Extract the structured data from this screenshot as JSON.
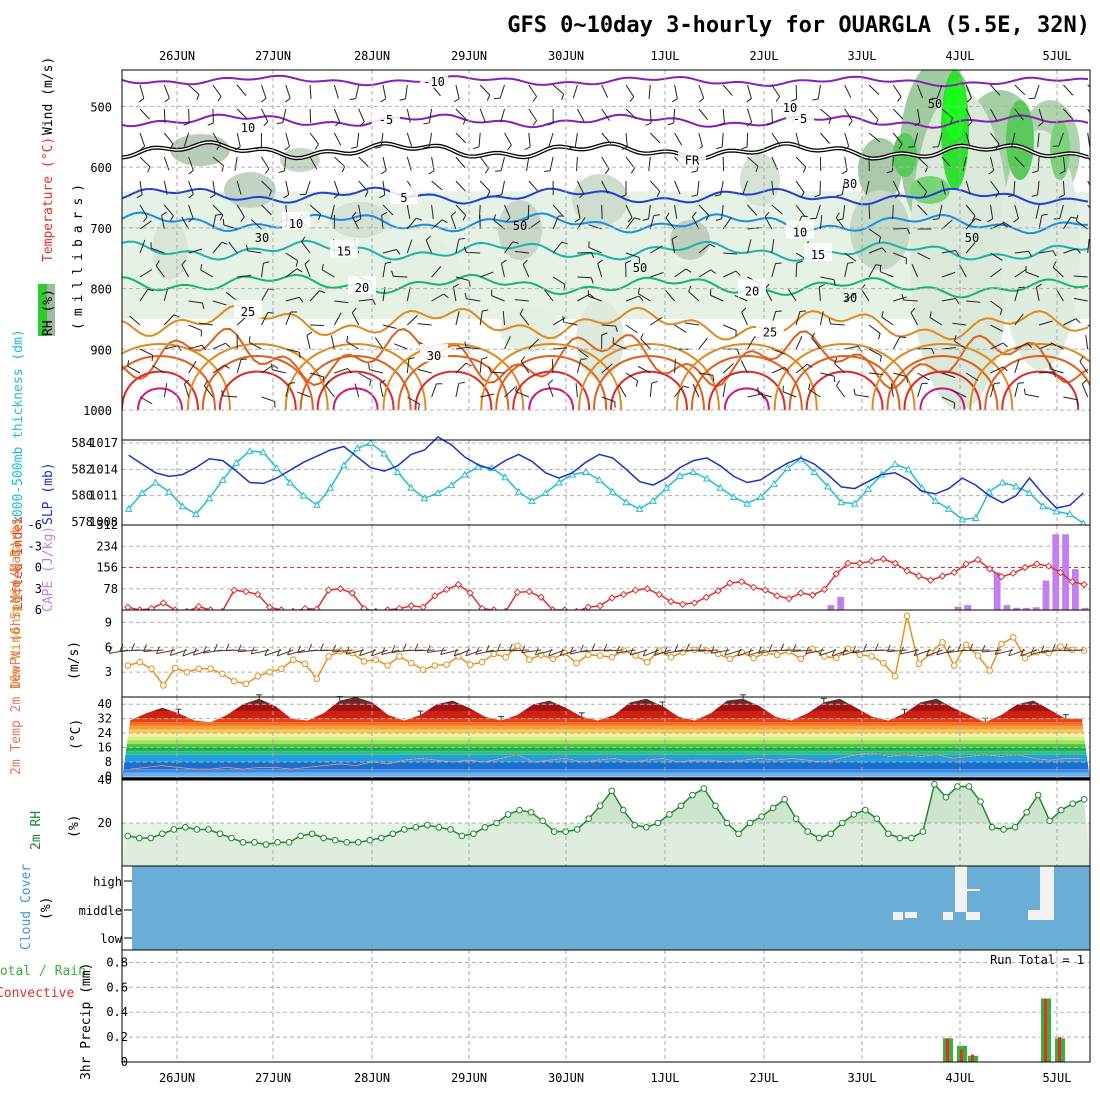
{
  "title": "GFS 0~10day 3-hourly for OUARGLA (5.5E, 32N)",
  "dates": [
    "26JUN",
    "27JUN",
    "28JUN",
    "29JUN",
    "30JUN",
    "1JUL",
    "2JUL",
    "3JUL",
    "4JUL",
    "5JUL"
  ],
  "colors": {
    "purple": "#8a1fb4",
    "blue": "#1f3fd6",
    "lightblue": "#1c8ee0",
    "teal": "#1bb3a9",
    "green": "#13b66e",
    "orange": "#e08a1e",
    "darkorange": "#e0601e",
    "red": "#e02828",
    "magenta": "#d01480",
    "cyan": "#1fbfcf",
    "slp": "#1a33c8",
    "li": "#e03030",
    "cape": "#c080f0",
    "windspeed": "#e89020",
    "rh2m": "#1e8a2a",
    "cloud": "#6aaed6",
    "precip_total": "#3ab03a",
    "precip_conv": "#e03030"
  },
  "panels": {
    "upper": {
      "ylabel_wind": "Wind (m/s)",
      "ylabel_temp": "Temperature (°C)",
      "ylabel_rh": "RH (%)",
      "ylabel_mb": "(millibars)",
      "yticks": [
        "500",
        "600",
        "700",
        "800",
        "900",
        "1000"
      ],
      "contours": [
        {
          "label": "-10",
          "level": 480
        },
        {
          "label": "-5",
          "level": 525
        },
        {
          "label": "FR",
          "level": 590
        },
        {
          "label": "-5",
          "level": 530
        },
        {
          "label": "5",
          "level": 640
        },
        {
          "label": "10",
          "level": 710
        },
        {
          "label": "15",
          "level": 745
        },
        {
          "label": "20",
          "level": 790
        },
        {
          "label": "25",
          "level": 850
        },
        {
          "label": "30",
          "level": 905
        }
      ],
      "contour_labels": [
        {
          "text": "-10",
          "series": 0,
          "at": 0.32
        },
        {
          "text": "-5",
          "series": 1,
          "at": 0.27
        },
        {
          "text": "-5",
          "series": 1,
          "at": 0.7
        },
        {
          "text": "FR",
          "series": 2,
          "at": 0.59
        },
        {
          "text": "5",
          "series": 3,
          "at": 0.29
        },
        {
          "text": "10",
          "series": 4,
          "at": 0.18
        },
        {
          "text": "10",
          "series": 4,
          "at": 0.7
        },
        {
          "text": "15",
          "series": 5,
          "at": 0.23
        },
        {
          "text": "15",
          "series": 5,
          "at": 0.72
        },
        {
          "text": "20",
          "series": 6,
          "at": 0.25
        },
        {
          "text": "20",
          "series": 6,
          "at": 0.65
        },
        {
          "text": "25",
          "series": 7,
          "at": 0.13
        },
        {
          "text": "25",
          "series": 7,
          "at": 0.67
        },
        {
          "text": "30",
          "series": 8,
          "at": 0.32
        }
      ],
      "rh_labels": [
        "10",
        "50",
        "30",
        "30",
        "50",
        "10",
        "50",
        "30",
        "50"
      ]
    },
    "thickness": {
      "ylabel_left": "1000-500mb thickness (dm)",
      "ylabel_right": "SLP (mb)",
      "left_ticks": [
        "584",
        "582",
        "580",
        "578"
      ],
      "right_ticks": [
        "1017",
        "1014",
        "1011",
        "1008"
      ]
    },
    "instability": {
      "ylabel_left": "Lifted Index",
      "ylabel_right": "CAPE (J/kg)",
      "left_ticks": [
        "-6",
        "-3",
        "0",
        "3",
        "6"
      ],
      "right_ticks": [
        "312",
        "234",
        "156",
        "78"
      ]
    },
    "wind10": {
      "ylabel": "10m Wind Speed & Barbs",
      "unit": "(m/s)",
      "yticks": [
        "9",
        "6",
        "3"
      ]
    },
    "temp2m": {
      "ylabel": "2m Temp 2m DewPt (6hr Min/Max)",
      "unit": "(°C)",
      "yticks": [
        "40",
        "32",
        "24",
        "16",
        "8",
        "0"
      ]
    },
    "rh2m": {
      "ylabel": "2m RH",
      "unit": "(%)",
      "yticks": [
        "40",
        "20"
      ]
    },
    "cloud": {
      "ylabel": "Cloud Cover",
      "unit": "(%)",
      "levels": [
        "high",
        "middle",
        "low"
      ]
    },
    "precip": {
      "ylabel_a": "Total / Rain",
      "ylabel_b": "Convective",
      "ylabel_c": "3hr Precip (mm)",
      "yticks": [
        "0.8",
        "0.6",
        "0.4",
        "0.2",
        "0"
      ],
      "run_total": "Run Total = 1"
    }
  },
  "chart_data": [
    {
      "type": "line",
      "panel": "thickness",
      "series": [
        {
          "name": "1000-500mb thickness (dm)",
          "values": [
            579.0,
            580.2,
            581.0,
            580.3,
            579.2,
            578.6,
            579.8,
            581.2,
            582.5,
            583.4,
            583.3,
            582.1,
            581.0,
            580.0,
            579.3,
            580.6,
            582.3,
            583.6,
            584.0,
            583.2,
            581.8,
            580.6,
            579.8,
            580.2,
            580.8,
            581.6,
            582.2,
            582.1,
            581.4,
            580.3,
            579.6,
            580.2,
            581.0,
            581.6,
            581.8,
            581.2,
            580.3,
            579.5,
            579.0,
            579.6,
            580.6,
            581.5,
            581.8,
            581.3,
            580.6,
            579.9,
            579.4,
            579.9,
            580.9,
            582.1,
            582.8,
            581.8,
            580.7,
            579.5,
            579.4,
            580.5,
            581.6,
            582.4,
            582.0,
            580.6,
            579.6,
            579.0,
            578.2,
            578.3,
            580.3,
            581.0,
            580.7,
            580.2,
            579.2,
            578.8,
            578.6,
            577.9
          ]
        },
        {
          "name": "SLP (mb)",
          "values": [
            1015.6,
            1014.6,
            1013.6,
            1013.2,
            1013.4,
            1014.2,
            1015.2,
            1015.0,
            1013.8,
            1012.5,
            1012.4,
            1013.0,
            1013.9,
            1014.8,
            1015.5,
            1016.2,
            1016.6,
            1015.4,
            1014.2,
            1013.8,
            1014.4,
            1015.7,
            1016.2,
            1017.7,
            1016.8,
            1015.4,
            1014.5,
            1014.0,
            1015.0,
            1015.7,
            1014.9,
            1013.6,
            1013.0,
            1013.6,
            1014.8,
            1015.7,
            1015.3,
            1014.0,
            1012.6,
            1012.2,
            1013.0,
            1014.2,
            1015.0,
            1015.3,
            1014.4,
            1013.2,
            1012.5,
            1012.8,
            1013.8,
            1014.7,
            1015.3,
            1014.6,
            1013.4,
            1012.0,
            1011.8,
            1012.6,
            1013.4,
            1013.6,
            1012.8,
            1011.5,
            1011.2,
            1011.8,
            1013.0,
            1012.2,
            1011.0,
            1010.2,
            1011.0,
            1013.0,
            1011.2,
            1009.6,
            1009.9,
            1011.3
          ]
        }
      ],
      "ylim_left": [
        578,
        584
      ],
      "ylim_right": [
        1008,
        1017
      ]
    },
    {
      "type": "line",
      "panel": "instability",
      "series": [
        {
          "name": "Lifted Index",
          "values": [
            5.6,
            6.0,
            5.8,
            5.0,
            6.0,
            6.2,
            5.5,
            6.0,
            6.2,
            3.2,
            3.4,
            3.8,
            5.6,
            6.0,
            6.2,
            5.8,
            5.9,
            3.2,
            3.0,
            3.6,
            5.8,
            6.2,
            6.0,
            5.8,
            5.4,
            5.6,
            4.0,
            3.1,
            2.4,
            3.6,
            5.8,
            6.0,
            6.2,
            3.5,
            3.4,
            4.2,
            6.0,
            6.0,
            6.2,
            5.6,
            5.4,
            4.3,
            3.8,
            3.2,
            3.0,
            3.8,
            4.8,
            5.2,
            5.0,
            4.2,
            3.3,
            2.2,
            2.0,
            2.8,
            3.2,
            4.0,
            4.4,
            3.6,
            3.9,
            3.1,
            0.9,
            -0.6,
            -0.6,
            -0.9,
            -1.2,
            -0.6,
            0.5,
            1.2,
            1.8,
            1.2,
            0.7,
            -0.5,
            -1.1,
            0.2,
            1.3,
            0.8,
            0.0,
            -0.5,
            -0.2,
            0.7,
            2.0,
            2.4
          ]
        },
        {
          "name": "CAPE (J/kg)",
          "values": [
            0,
            0,
            0,
            0,
            0,
            0,
            0,
            0,
            0,
            0,
            0,
            0,
            0,
            0,
            0,
            0,
            0,
            0,
            0,
            0,
            0,
            0,
            0,
            0,
            0,
            0,
            0,
            0,
            0,
            0,
            0,
            0,
            0,
            0,
            0,
            0,
            0,
            0,
            0,
            0,
            0,
            0,
            0,
            0,
            0,
            0,
            0,
            0,
            0,
            0,
            0,
            0,
            0,
            0,
            0,
            0,
            0,
            0,
            0,
            0,
            0,
            0,
            0,
            0,
            0,
            0,
            0,
            0,
            0,
            0,
            0,
            0,
            18,
            48,
            0,
            0,
            0,
            0,
            0,
            0,
            0,
            0,
            0,
            0,
            0,
            12,
            18,
            0,
            0,
            138,
            18,
            8,
            8,
            10,
            108,
            278,
            278,
            150,
            8
          ]
        }
      ],
      "ylim_left": [
        6,
        -6
      ],
      "ylim_right": [
        0,
        312
      ]
    },
    {
      "type": "line",
      "panel": "wind10",
      "series": [
        {
          "name": "10m Wind Speed (m/s)",
          "values": [
            3.8,
            4.2,
            3.4,
            1.4,
            3.5,
            3.0,
            3.4,
            3.4,
            2.8,
            1.9,
            1.6,
            2.5,
            3.0,
            3.4,
            4.5,
            4.0,
            2.2,
            4.9,
            5.5,
            5.3,
            4.3,
            4.5,
            3.8,
            4.9,
            4.1,
            3.3,
            3.8,
            3.9,
            4.9,
            3.9,
            4.2,
            5.2,
            4.8,
            6.2,
            4.5,
            5.1,
            4.6,
            5.3,
            4.1,
            5.1,
            5.0,
            4.8,
            5.6,
            5.0,
            4.2,
            5.6,
            4.8,
            5.4,
            5.7,
            5.6,
            5.2,
            4.6,
            5.4,
            4.7,
            5.3,
            5.1,
            5.5,
            4.6,
            5.8,
            4.9,
            4.7,
            5.8,
            5.1,
            4.9,
            4.1,
            2.5,
            9.8,
            4.0,
            5.3,
            6.6,
            3.8,
            6.3,
            5.0,
            3.2,
            6.4,
            7.2,
            4.7,
            5.4,
            5.3,
            6.1,
            5.7,
            5.6
          ]
        }
      ],
      "ylim": [
        0,
        10.5
      ]
    },
    {
      "type": "area",
      "panel": "temp2m",
      "series": [
        {
          "name": "2m Temp (°C)",
          "values": [
            31,
            35,
            38,
            35,
            31,
            30,
            34,
            40,
            43,
            39,
            32,
            31,
            35,
            42,
            44,
            41,
            34,
            31,
            34,
            40,
            42,
            38,
            33,
            31,
            34,
            40,
            42,
            38,
            33,
            31,
            34,
            41,
            43,
            39,
            33,
            31,
            35,
            42,
            43,
            39,
            33,
            31,
            35,
            41,
            43,
            38,
            33,
            31,
            35,
            41,
            43,
            38,
            34,
            30,
            34,
            40,
            42,
            37,
            32,
            32
          ]
        },
        {
          "name": "2m DewPt (°C)",
          "values": [
            4,
            5,
            6,
            5,
            4,
            4,
            5,
            4,
            5,
            5,
            4,
            5,
            6,
            7,
            6,
            8,
            7,
            9,
            10,
            9,
            8,
            9,
            8,
            10,
            12,
            8,
            9,
            10,
            8,
            9,
            10,
            8,
            9,
            10,
            8,
            9,
            9,
            8,
            9,
            10,
            9,
            10,
            9,
            8,
            10,
            12,
            13,
            11,
            12,
            11,
            12,
            10,
            11,
            12,
            11,
            12,
            10,
            9,
            10,
            10
          ]
        }
      ],
      "ylim": [
        -2,
        44
      ]
    },
    {
      "type": "area",
      "panel": "rh2m",
      "series": [
        {
          "name": "2m RH (%)",
          "values": [
            14,
            13,
            13,
            15,
            17,
            18,
            17,
            17,
            15,
            13,
            11,
            11,
            10,
            11,
            11,
            14,
            15,
            13,
            12,
            11,
            11,
            12,
            13,
            15,
            17,
            18,
            19,
            18,
            17,
            14,
            15,
            18,
            20,
            24,
            26,
            25,
            21,
            16,
            16,
            17,
            22,
            28,
            35,
            26,
            19,
            18,
            20,
            24,
            28,
            33,
            36,
            28,
            20,
            15,
            20,
            23,
            27,
            31,
            22,
            16,
            13,
            15,
            20,
            24,
            26,
            22,
            15,
            13,
            13,
            16,
            38,
            32,
            37,
            37,
            30,
            18,
            17,
            18,
            25,
            33,
            21,
            26,
            29,
            31
          ]
        }
      ],
      "ylim": [
        0,
        40
      ]
    },
    {
      "type": "bar",
      "panel": "precip",
      "series": [
        {
          "name": "Total / Rain",
          "values": [
            0.19,
            0.13,
            0.05,
            0.51,
            0.19
          ]
        },
        {
          "name": "Convective",
          "values": [
            0.19,
            0.1,
            0.06,
            0.51,
            0.2
          ]
        }
      ],
      "categories": [
        "4JUL 00",
        "4JUL 03",
        "4JUL 06",
        "5JUL 00",
        "5JUL 03"
      ],
      "ylim": [
        0,
        0.9
      ]
    }
  ]
}
